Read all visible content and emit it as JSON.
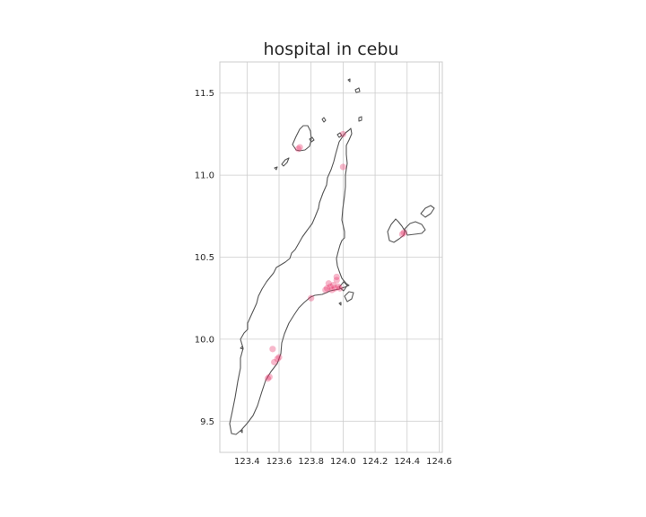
{
  "title": "hospital in cebu",
  "chart_data": {
    "type": "scatter",
    "title": "hospital in cebu",
    "xlabel": "",
    "ylabel": "",
    "xlim": [
      123.23,
      124.62
    ],
    "ylim": [
      9.31,
      11.69
    ],
    "xticks": [
      "123.4",
      "123.6",
      "123.8",
      "124.0",
      "124.2",
      "124.4",
      "124.6"
    ],
    "yticks": [
      "9.5",
      "10.0",
      "10.5",
      "11.0",
      "11.5"
    ],
    "xtick_values": [
      123.4,
      123.6,
      123.8,
      124.0,
      124.2,
      124.4,
      124.6
    ],
    "ytick_values": [
      9.5,
      10.0,
      10.5,
      11.0,
      11.5
    ],
    "grid": true,
    "marker_color": "#e8336b",
    "points": [
      {
        "lon": 123.72,
        "lat": 11.16
      },
      {
        "lon": 123.73,
        "lat": 11.17
      },
      {
        "lon": 124.0,
        "lat": 11.25
      },
      {
        "lon": 124.0,
        "lat": 11.05
      },
      {
        "lon": 124.37,
        "lat": 10.64
      },
      {
        "lon": 124.38,
        "lat": 10.65
      },
      {
        "lon": 123.8,
        "lat": 10.25
      },
      {
        "lon": 123.89,
        "lat": 10.3
      },
      {
        "lon": 123.9,
        "lat": 10.31
      },
      {
        "lon": 123.91,
        "lat": 10.34
      },
      {
        "lon": 123.92,
        "lat": 10.32
      },
      {
        "lon": 123.93,
        "lat": 10.3
      },
      {
        "lon": 123.94,
        "lat": 10.33
      },
      {
        "lon": 123.95,
        "lat": 10.31
      },
      {
        "lon": 123.96,
        "lat": 10.36
      },
      {
        "lon": 123.96,
        "lat": 10.38
      },
      {
        "lon": 123.97,
        "lat": 10.32
      },
      {
        "lon": 123.98,
        "lat": 10.31
      },
      {
        "lon": 123.56,
        "lat": 9.94
      },
      {
        "lon": 123.57,
        "lat": 9.86
      },
      {
        "lon": 123.59,
        "lat": 9.88
      },
      {
        "lon": 123.6,
        "lat": 9.89
      },
      {
        "lon": 123.53,
        "lat": 9.76
      },
      {
        "lon": 123.54,
        "lat": 9.77
      }
    ]
  }
}
